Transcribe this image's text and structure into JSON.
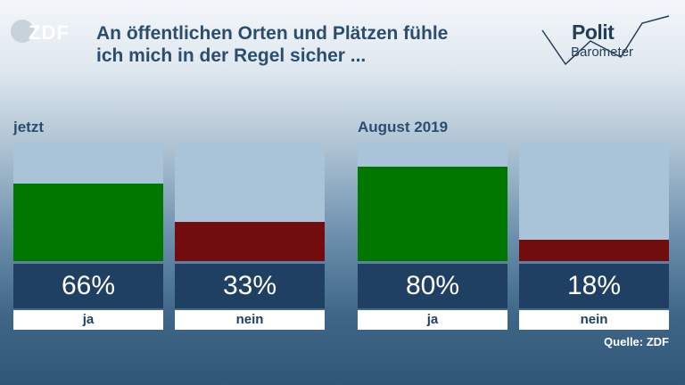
{
  "header": {
    "logo_text": "ZDF",
    "title_lines": [
      "An öffentlichen Orten und Plätzen fühle",
      "ich mich in der Regel sicher ..."
    ],
    "brand_top": "Polit",
    "brand_bottom": "Barometer"
  },
  "source": "Quelle: ZDF",
  "colors": {
    "ja": "#007800",
    "nein": "#720d0d",
    "bar_background": "#a9c3d8",
    "value_box": "#1f4062"
  },
  "chart_data": [
    {
      "type": "bar",
      "title": "jetzt",
      "categories": [
        "ja",
        "nein"
      ],
      "values": [
        66,
        33
      ],
      "value_labels": [
        "66%",
        "33%"
      ],
      "ylim": [
        0,
        100
      ]
    },
    {
      "type": "bar",
      "title": "August 2019",
      "categories": [
        "ja",
        "nein"
      ],
      "values": [
        80,
        18
      ],
      "value_labels": [
        "80%",
        "18%"
      ],
      "ylim": [
        0,
        100
      ]
    }
  ]
}
